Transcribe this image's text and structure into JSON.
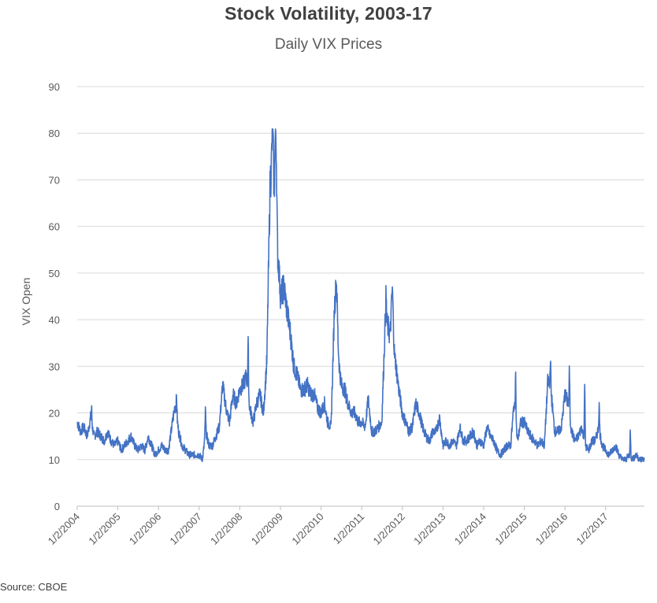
{
  "chart_data": {
    "type": "line",
    "title": "Stock Volatility,  2003-17",
    "subtitle": "Daily VIX Prices",
    "xlabel": "",
    "ylabel": "VIX Open",
    "source": "Source: CBOE",
    "ylim": [
      0,
      90
    ],
    "y_ticks": [
      "0",
      "10",
      "20",
      "30",
      "40",
      "50",
      "60",
      "70",
      "80",
      "90"
    ],
    "x_ticks": [
      "1/2/2004",
      "1/2/2005",
      "1/2/2006",
      "1/2/2007",
      "1/2/2008",
      "1/2/2009",
      "1/2/2010",
      "1/2/2011",
      "1/2/2012",
      "1/2/2013",
      "1/2/2014",
      "1/2/2015",
      "1/2/2016",
      "1/2/2017"
    ],
    "grid": true,
    "legend": "none",
    "colors": {
      "line": "#4472C4",
      "grid": "#D9D9D9",
      "axis": "#BFBFBF"
    },
    "series": [
      {
        "x": [
          "2004-01-02",
          "2004-02-01",
          "2004-03-01",
          "2004-04-01",
          "2004-05-01",
          "2004-06-01",
          "2004-07-01",
          "2004-08-01",
          "2004-09-01",
          "2004-10-01",
          "2004-11-01",
          "2004-12-01",
          "2005-01-01",
          "2005-02-01",
          "2005-03-01",
          "2005-04-01",
          "2005-05-01",
          "2005-06-01",
          "2005-07-01",
          "2005-08-01",
          "2005-09-01",
          "2005-10-01",
          "2005-11-01",
          "2005-12-01",
          "2006-01-01",
          "2006-02-01",
          "2006-03-01",
          "2006-04-01",
          "2006-05-01",
          "2006-06-01",
          "2006-07-01",
          "2006-08-01",
          "2006-09-01",
          "2006-10-01",
          "2006-11-01",
          "2006-12-01",
          "2007-01-01",
          "2007-02-01",
          "2007-03-01",
          "2007-04-01",
          "2007-05-01",
          "2007-06-01",
          "2007-07-01",
          "2007-08-01",
          "2007-09-01",
          "2007-10-01",
          "2007-11-01",
          "2007-12-01",
          "2008-01-01",
          "2008-02-01",
          "2008-03-01",
          "2008-04-01",
          "2008-05-01",
          "2008-06-01",
          "2008-07-01",
          "2008-08-01",
          "2008-09-01",
          "2008-10-01",
          "2008-11-01",
          "2008-12-01",
          "2009-01-01",
          "2009-02-01",
          "2009-03-01",
          "2009-04-01",
          "2009-05-01",
          "2009-06-01",
          "2009-07-01",
          "2009-08-01",
          "2009-09-01",
          "2009-10-01",
          "2009-11-01",
          "2009-12-01",
          "2010-01-01",
          "2010-02-01",
          "2010-03-01",
          "2010-04-01",
          "2010-05-01",
          "2010-06-01",
          "2010-07-01",
          "2010-08-01",
          "2010-09-01",
          "2010-10-01",
          "2010-11-01",
          "2010-12-01",
          "2011-01-01",
          "2011-02-01",
          "2011-03-01",
          "2011-04-01",
          "2011-05-01",
          "2011-06-01",
          "2011-07-01",
          "2011-08-01",
          "2011-09-01",
          "2011-10-01",
          "2011-11-01",
          "2011-12-01",
          "2012-01-01",
          "2012-02-01",
          "2012-03-01",
          "2012-04-01",
          "2012-05-01",
          "2012-06-01",
          "2012-07-01",
          "2012-08-01",
          "2012-09-01",
          "2012-10-01",
          "2012-11-01",
          "2012-12-01",
          "2013-01-01",
          "2013-02-01",
          "2013-03-01",
          "2013-04-01",
          "2013-05-01",
          "2013-06-01",
          "2013-07-01",
          "2013-08-01",
          "2013-09-01",
          "2013-10-01",
          "2013-11-01",
          "2013-12-01",
          "2014-01-01",
          "2014-02-01",
          "2014-03-01",
          "2014-04-01",
          "2014-05-01",
          "2014-06-01",
          "2014-07-01",
          "2014-08-01",
          "2014-09-01",
          "2014-10-01",
          "2014-11-01",
          "2014-12-01",
          "2015-01-01",
          "2015-02-01",
          "2015-03-01",
          "2015-04-01",
          "2015-05-01",
          "2015-06-01",
          "2015-07-01",
          "2015-08-01",
          "2015-09-01",
          "2015-10-01",
          "2015-11-01",
          "2015-12-01",
          "2016-01-01",
          "2016-02-01",
          "2016-03-01",
          "2016-04-01",
          "2016-05-01",
          "2016-06-01",
          "2016-07-01",
          "2016-08-01",
          "2016-09-01",
          "2016-10-01",
          "2016-11-01",
          "2016-12-01",
          "2017-01-01",
          "2017-02-01",
          "2017-03-01",
          "2017-04-01",
          "2017-05-01",
          "2017-06-01",
          "2017-07-01",
          "2017-08-01",
          "2017-09-01",
          "2017-10-01",
          "2017-11-01",
          "2017-12-01"
        ],
        "y": [
          18,
          16,
          17,
          15,
          19,
          15,
          16,
          15,
          14,
          16,
          14,
          13,
          14,
          12,
          13,
          14,
          15,
          13,
          12,
          13,
          12,
          15,
          13,
          11,
          12,
          13,
          12,
          12,
          17,
          22,
          16,
          13,
          12,
          11,
          11,
          11,
          11,
          10,
          16,
          13,
          13,
          15,
          17,
          26,
          21,
          18,
          24,
          22,
          25,
          26,
          28,
          21,
          18,
          22,
          24,
          20,
          31,
          70,
          60,
          52,
          45,
          47,
          42,
          37,
          30,
          28,
          25,
          25,
          26,
          24,
          24,
          21,
          20,
          22,
          18,
          17,
          42,
          33,
          26,
          25,
          22,
          20,
          20,
          18,
          18,
          17,
          23,
          16,
          16,
          17,
          18,
          40,
          38,
          33,
          31,
          25,
          20,
          18,
          16,
          17,
          22,
          20,
          17,
          15,
          14,
          16,
          16,
          19,
          13,
          14,
          13,
          14,
          13,
          17,
          14,
          14,
          15,
          16,
          13,
          14,
          13,
          17,
          15,
          14,
          12,
          11,
          12,
          13,
          13,
          22,
          14,
          18,
          18,
          16,
          15,
          14,
          13,
          14,
          13,
          27,
          24,
          16,
          16,
          17,
          24,
          22,
          16,
          14,
          15,
          17,
          13,
          12,
          14,
          14,
          17,
          13,
          12,
          11,
          12,
          13,
          11,
          10,
          10,
          11,
          10,
          11,
          10,
          10
        ]
      }
    ],
    "annotations": [
      {
        "x": "2008-11-20",
        "y": 80.7
      },
      {
        "x": "2008-10-24",
        "y": 80.0
      },
      {
        "x": "2008-12-15",
        "y": 52.0
      },
      {
        "x": "2010-05-20",
        "y": 47.5
      },
      {
        "x": "2011-08-08",
        "y": 45.0
      },
      {
        "x": "2011-10-03",
        "y": 46.0
      },
      {
        "x": "2004-05-10",
        "y": 21.0
      },
      {
        "x": "2006-06-13",
        "y": 23.5
      },
      {
        "x": "2007-02-27",
        "y": 20.5
      },
      {
        "x": "2008-03-17",
        "y": 35.0
      },
      {
        "x": "2014-10-15",
        "y": 29.0
      },
      {
        "x": "2015-08-24",
        "y": 32.0
      },
      {
        "x": "2016-02-11",
        "y": 29.0
      },
      {
        "x": "2016-06-27",
        "y": 26.0
      },
      {
        "x": "2016-11-04",
        "y": 21.5
      },
      {
        "x": "2017-08-11",
        "y": 16.0
      }
    ]
  }
}
